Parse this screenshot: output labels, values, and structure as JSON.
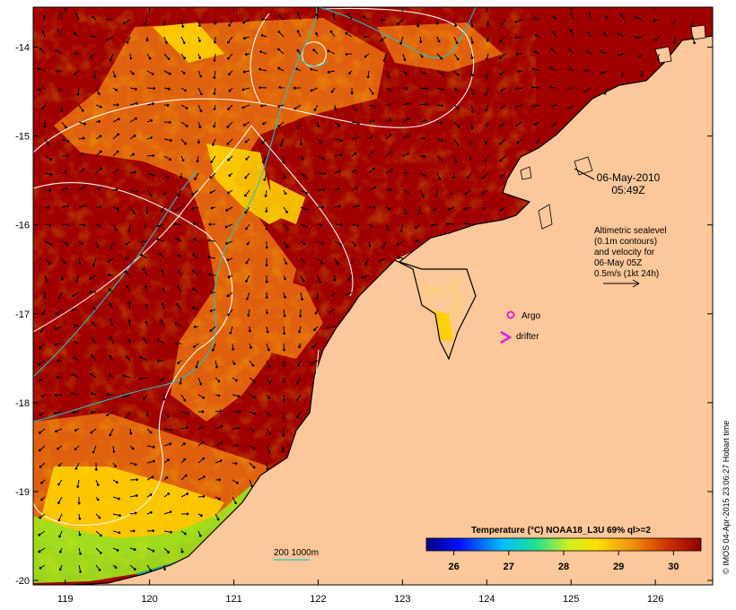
{
  "map": {
    "date_line1": "06-May-2010",
    "date_line2": "05:49Z",
    "altimetry_note": [
      "Altimetric sealevel",
      "(0.1m contours)",
      "and velocity for",
      "06-May 05Z"
    ],
    "arrow_scale_label": "0.5m/s (1kt 24h)",
    "legend_argo": "Argo",
    "legend_drifter": "drifter",
    "bathy_label": "200  1000m",
    "colorbar_title": "Temperature (°C) NOAA18_L3U 69% ql>=2",
    "colorbar_ticks": [
      "26",
      "27",
      "28",
      "29",
      "30"
    ],
    "colorbar_range": [
      25.5,
      30.5
    ],
    "credit": "© IMOS 04-Apr-2015 23:06:27 Hobart time",
    "lat_ticks": [
      "-14",
      "-15",
      "-16",
      "-17",
      "-18",
      "-19",
      "-20"
    ],
    "lon_ticks": [
      "119",
      "120",
      "121",
      "122",
      "123",
      "124",
      "125",
      "126"
    ],
    "lat_range": [
      -20.05,
      -13.55
    ],
    "lon_range": [
      118.62,
      126.68
    ],
    "colors": {
      "land": "#fcc79a",
      "sst_warm": "#a00000",
      "sst_mid": "#e66a10",
      "sst_cool": "#ffd000",
      "contour_200m": "#22c3c3",
      "argo": "#e020e0",
      "drifter": "#e020e0"
    }
  }
}
